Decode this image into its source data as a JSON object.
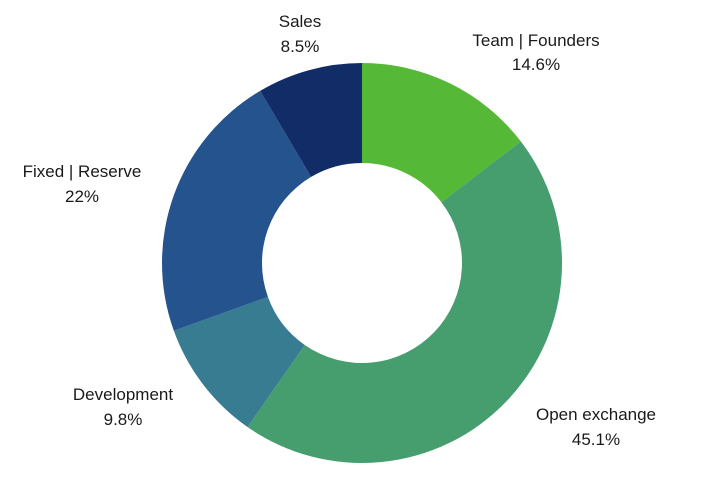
{
  "chart_data": {
    "type": "pie",
    "title": "",
    "donut": true,
    "slices": [
      {
        "name": "Team | Founders",
        "value": 14.6,
        "label": "14.6%",
        "color": "#56b837"
      },
      {
        "name": "Open exchange",
        "value": 45.1,
        "label": "45.1%",
        "color": "#469d6e"
      },
      {
        "name": "Development",
        "value": 9.8,
        "label": "9.8%",
        "color": "#387c91"
      },
      {
        "name": "Fixed | Reserve",
        "value": 22,
        "label": "22%",
        "color": "#24538e"
      },
      {
        "name": "Sales",
        "value": 8.5,
        "label": "8.5%",
        "color": "#112c67"
      }
    ],
    "start_angle": "top",
    "direction": "clockwise"
  }
}
